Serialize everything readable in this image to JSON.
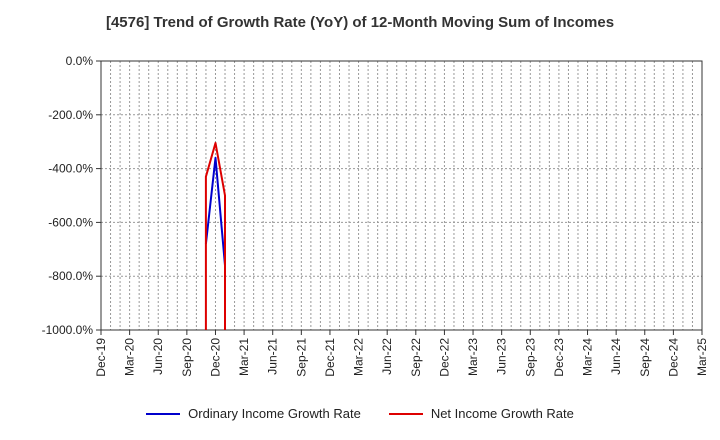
{
  "chart_data": {
    "type": "line",
    "title": "[4576]  Trend of Growth Rate (YoY) of 12-Month Moving Sum of Incomes",
    "xlabel": "",
    "ylabel": "",
    "ylim": [
      -1000,
      0
    ],
    "yticks": [
      "0.0%",
      "-200.0%",
      "-400.0%",
      "-600.0%",
      "-800.0%",
      "-1000.0%"
    ],
    "x_tick_labels": [
      "Dec-19",
      "Mar-20",
      "Jun-20",
      "Sep-20",
      "Dec-20",
      "Mar-21",
      "Jun-21",
      "Sep-21",
      "Dec-21",
      "Mar-22",
      "Jun-22",
      "Sep-22",
      "Dec-22",
      "Mar-23",
      "Jun-23",
      "Sep-23",
      "Dec-23",
      "Mar-24",
      "Jun-24",
      "Sep-24",
      "Dec-24",
      "Mar-25"
    ],
    "grid": true,
    "legend_position": "bottom",
    "series": [
      {
        "name": "Ordinary Income Growth Rate",
        "color": "#0000cc",
        "points": [
          {
            "x": "Nov-20",
            "y": -680
          },
          {
            "x": "Dec-20",
            "y": -360
          },
          {
            "x": "Jan-21",
            "y": -760
          }
        ]
      },
      {
        "name": "Net Income Growth Rate",
        "color": "#dd0000",
        "points": [
          {
            "x": "Nov-20",
            "y": -1000
          },
          {
            "x": "Nov-20",
            "y": -430
          },
          {
            "x": "Dec-20",
            "y": -305
          },
          {
            "x": "Jan-21",
            "y": -500
          },
          {
            "x": "Jan-21",
            "y": -1000
          }
        ]
      }
    ]
  }
}
